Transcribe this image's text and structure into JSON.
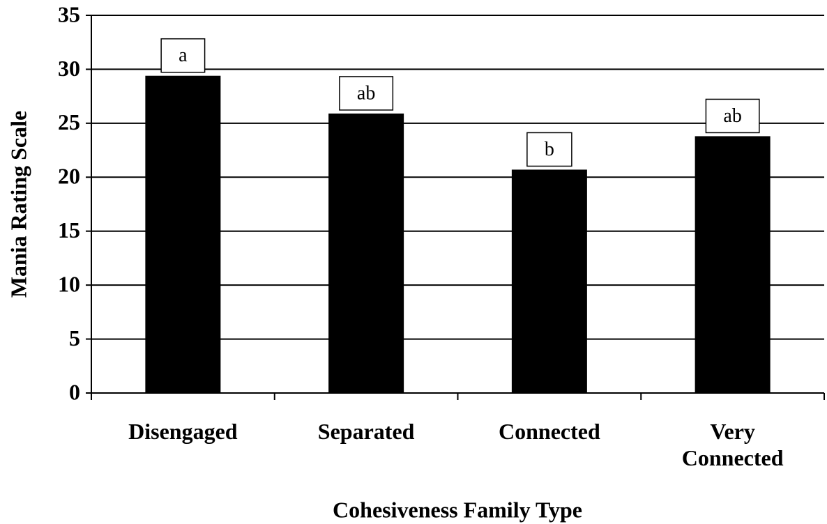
{
  "chart_data": {
    "type": "bar",
    "x_label": "Cohesiveness Family Type",
    "y_label": "Mania Rating Scale",
    "categories": [
      "Disengaged",
      "Separated",
      "Connected",
      "Very Connected"
    ],
    "values": [
      29.4,
      25.9,
      20.7,
      23.8
    ],
    "annotations": [
      "a",
      "ab",
      "b",
      "ab"
    ],
    "color": "#000000",
    "ylim": [
      0,
      35
    ],
    "yticks": [
      0,
      5,
      10,
      15,
      20,
      25,
      30,
      35
    ],
    "grid": true
  }
}
